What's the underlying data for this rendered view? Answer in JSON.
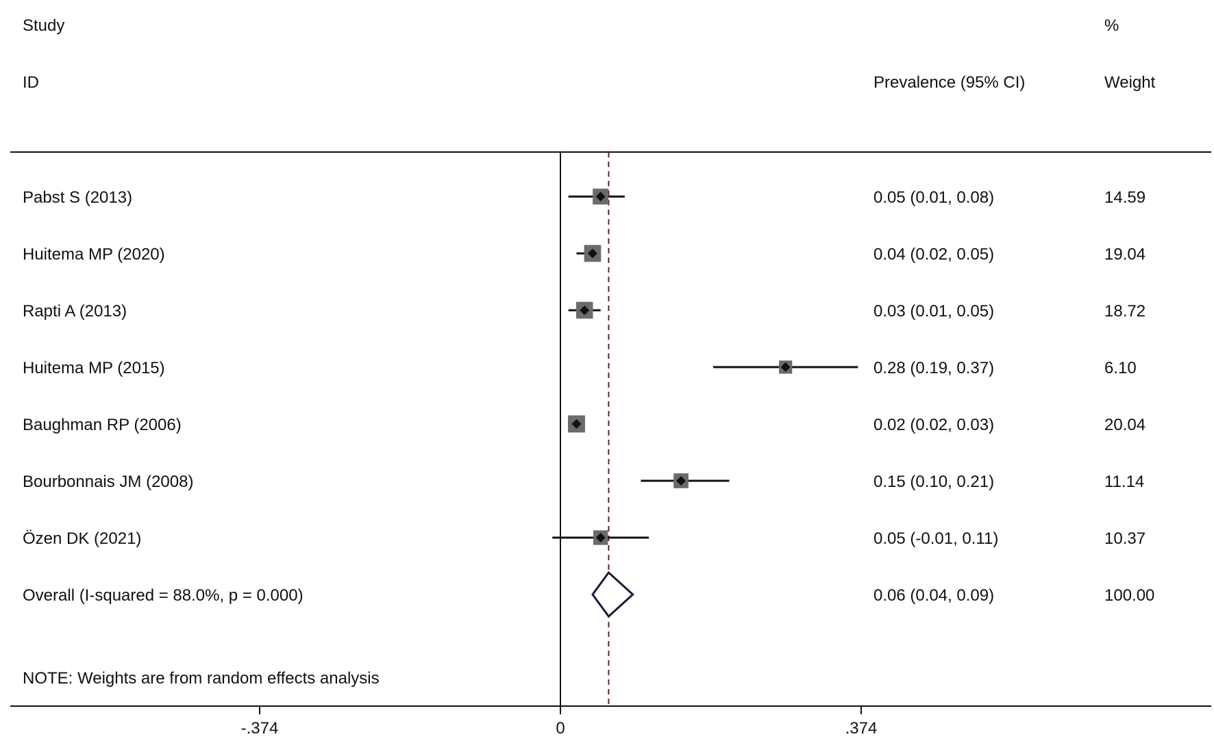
{
  "headers": {
    "study": "Study",
    "id": "ID",
    "ci": "Prevalence (95% CI)",
    "pct": "%",
    "weight": "Weight"
  },
  "note": "NOTE: Weights are from random effects analysis",
  "colors": {
    "marker_box": "#6b6b6b",
    "marker_point": "#111111",
    "line": "#111111",
    "overall_diamond": "#1a1a3a",
    "pooled_line": "#7a1a1a"
  },
  "chart_data": {
    "type": "forest",
    "x_ticks": [
      {
        "value": -0.374,
        "label": "-.374"
      },
      {
        "value": 0,
        "label": "0"
      },
      {
        "value": 0.374,
        "label": ".374"
      }
    ],
    "xlim": [
      -0.374,
      0.374
    ],
    "null_line": 0,
    "pooled_estimate": 0.06,
    "studies": [
      {
        "label": "Pabst S (2013)",
        "est": 0.05,
        "lo": 0.01,
        "hi": 0.08,
        "ci_text": "0.05 (0.01, 0.08)",
        "weight": 14.59,
        "weight_text": "14.59"
      },
      {
        "label": "Huitema MP (2020)",
        "est": 0.04,
        "lo": 0.02,
        "hi": 0.05,
        "ci_text": "0.04 (0.02, 0.05)",
        "weight": 19.04,
        "weight_text": "19.04"
      },
      {
        "label": "Rapti A (2013)",
        "est": 0.03,
        "lo": 0.01,
        "hi": 0.05,
        "ci_text": "0.03 (0.01, 0.05)",
        "weight": 18.72,
        "weight_text": "18.72"
      },
      {
        "label": "Huitema MP (2015)",
        "est": 0.28,
        "lo": 0.19,
        "hi": 0.37,
        "ci_text": "0.28 (0.19, 0.37)",
        "weight": 6.1,
        "weight_text": "6.10"
      },
      {
        "label": "Baughman RP (2006)",
        "est": 0.02,
        "lo": 0.02,
        "hi": 0.03,
        "ci_text": "0.02 (0.02, 0.03)",
        "weight": 20.04,
        "weight_text": "20.04"
      },
      {
        "label": "Bourbonnais JM (2008)",
        "est": 0.15,
        "lo": 0.1,
        "hi": 0.21,
        "ci_text": "0.15 (0.10, 0.21)",
        "weight": 11.14,
        "weight_text": "11.14"
      },
      {
        "label": "Özen DK (2021)",
        "est": 0.05,
        "lo": -0.01,
        "hi": 0.11,
        "ci_text": "0.05 (-0.01, 0.11)",
        "weight": 10.37,
        "weight_text": "10.37"
      }
    ],
    "overall": {
      "label": "Overall  (I-squared = 88.0%, p = 0.000)",
      "est": 0.06,
      "lo": 0.04,
      "hi": 0.09,
      "ci_text": "0.06 (0.04, 0.09)",
      "weight_text": "100.00"
    }
  }
}
